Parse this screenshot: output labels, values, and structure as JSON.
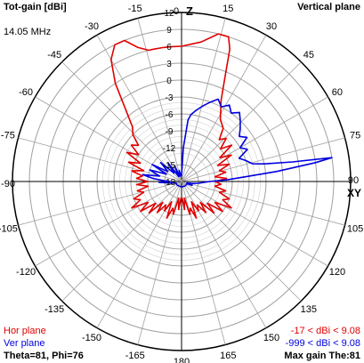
{
  "header": {
    "title": "Tot-gain [dBi]",
    "plane": "Vertical plane",
    "frequency": "14.05 MHz"
  },
  "footer": {
    "hor_label": "Hor plane",
    "ver_label": "Ver plane",
    "hor_range": "-17 < dBi < 9.08",
    "ver_range": "-999 < dBi < 9.08",
    "theta_phi": "Theta=81, Phi=76",
    "max_gain": "Max gain The:81"
  },
  "colors": {
    "hor": "#e00000",
    "ver": "#0000e0",
    "grid": "#a0a0a0",
    "axis": "#000000"
  },
  "chart_data": {
    "type": "polar",
    "angle_labels": [
      {
        "text": "0",
        "deg": 0
      },
      {
        "text": "15",
        "deg": 15
      },
      {
        "text": "30",
        "deg": 30
      },
      {
        "text": "45",
        "deg": 45
      },
      {
        "text": "60",
        "deg": 60
      },
      {
        "text": "75",
        "deg": 75
      },
      {
        "text": "90",
        "deg": 90
      },
      {
        "text": "105",
        "deg": 105
      },
      {
        "text": "120",
        "deg": 120
      },
      {
        "text": "135",
        "deg": 135
      },
      {
        "text": "150",
        "deg": 150
      },
      {
        "text": "165",
        "deg": 165
      },
      {
        "text": "180",
        "deg": 180
      },
      {
        "text": "-165",
        "deg": -165
      },
      {
        "text": "-150",
        "deg": -150
      },
      {
        "text": "-135",
        "deg": -135
      },
      {
        "text": "-120",
        "deg": -120
      },
      {
        "text": "-105",
        "deg": -105
      },
      {
        "text": "-90",
        "deg": -90
      },
      {
        "text": "-75",
        "deg": -75
      },
      {
        "text": "-60",
        "deg": -60
      },
      {
        "text": "-45",
        "deg": -45
      },
      {
        "text": "-30",
        "deg": -30
      },
      {
        "text": "-15",
        "deg": -15
      }
    ],
    "axis_z_label": "Z",
    "axis_xy_label": "XY",
    "radial_ticks": [
      12,
      9,
      6,
      3,
      0,
      -3,
      -6,
      -9,
      -12,
      -15,
      -18
    ],
    "r_range": [
      -18,
      12
    ],
    "series": [
      {
        "name": "Hor plane",
        "deg": [
          0,
          8,
          14,
          18,
          20,
          22,
          26,
          32,
          38,
          42,
          46,
          50,
          54,
          58,
          62,
          66,
          70,
          74,
          78,
          82,
          86,
          90,
          94,
          98,
          102,
          106,
          110,
          114,
          118,
          122,
          126,
          130,
          134,
          138,
          142,
          146,
          150,
          154,
          158,
          162,
          166,
          170,
          174,
          178,
          180,
          182,
          186,
          190,
          194,
          198,
          202,
          206,
          210,
          214,
          218,
          222,
          226,
          230,
          234,
          238,
          242,
          246,
          250,
          254,
          258,
          262,
          266,
          270,
          274,
          278,
          282,
          286,
          290,
          294,
          298,
          302,
          306,
          310,
          314,
          318,
          322,
          326,
          330,
          334,
          338,
          342,
          346,
          348,
          352,
          356,
          360
        ],
        "values": [
          6,
          7,
          9,
          9,
          7,
          3,
          -2,
          -5,
          -6,
          -8,
          -7,
          -9,
          -7,
          -10,
          -8,
          -11,
          -9,
          -11,
          -10,
          -12,
          -10,
          -12,
          -11,
          -12,
          -10,
          -11,
          -9,
          -10,
          -8,
          -11,
          -9,
          -12,
          -10,
          -13,
          -11,
          -13,
          -12,
          -14,
          -11,
          -13,
          -12,
          -15,
          -13,
          -15,
          -15,
          -15,
          -13,
          -15,
          -12,
          -13,
          -11,
          -14,
          -12,
          -13,
          -11,
          -13,
          -10,
          -12,
          -9,
          -11,
          -8,
          -10,
          -9,
          -11,
          -10,
          -12,
          -10,
          -12,
          -10,
          -11,
          -9,
          -11,
          -8,
          -10,
          -7,
          -9,
          -7,
          -8,
          -6,
          -5,
          -2,
          3,
          7,
          9,
          9,
          7,
          6,
          6,
          6,
          6,
          6
        ]
      },
      {
        "name": "Ver plane",
        "deg": [
          0,
          3,
          6,
          8,
          12,
          16,
          20,
          24,
          28,
          32,
          36,
          40,
          44,
          48,
          52,
          56,
          60,
          64,
          68,
          72,
          76,
          78,
          80,
          81,
          82,
          84,
          86,
          88,
          90,
          92,
          96,
          100,
          104,
          108,
          110,
          112,
          114,
          118,
          122,
          126,
          132,
          140,
          180,
          228,
          236,
          240,
          248,
          256,
          262,
          266,
          268,
          270,
          272,
          276,
          280,
          284,
          290,
          296,
          300,
          306,
          312,
          318,
          324,
          330,
          336,
          342,
          348,
          354,
          356,
          358,
          360
        ],
        "values": [
          -17,
          -12,
          -7,
          -6,
          -5,
          -4,
          -3,
          -2,
          -3,
          -2,
          -3,
          -2,
          -3,
          -4,
          -5,
          -4,
          -6,
          -5,
          -7,
          -6,
          -5,
          -3,
          2,
          9,
          6,
          -1,
          -7,
          -10,
          -13,
          -14,
          -15,
          -16,
          -17,
          -17,
          -16,
          -17,
          -17,
          -17,
          -17,
          -17,
          -17,
          -17,
          -17,
          -17,
          -17,
          -17,
          -17,
          -17,
          -16,
          -15,
          -14,
          -16,
          -15,
          -13,
          -11,
          -14,
          -12,
          -15,
          -12,
          -15,
          -13,
          -16,
          -14,
          -17,
          -15,
          -17,
          -16,
          -17,
          -17,
          -17,
          -17
        ]
      }
    ]
  }
}
